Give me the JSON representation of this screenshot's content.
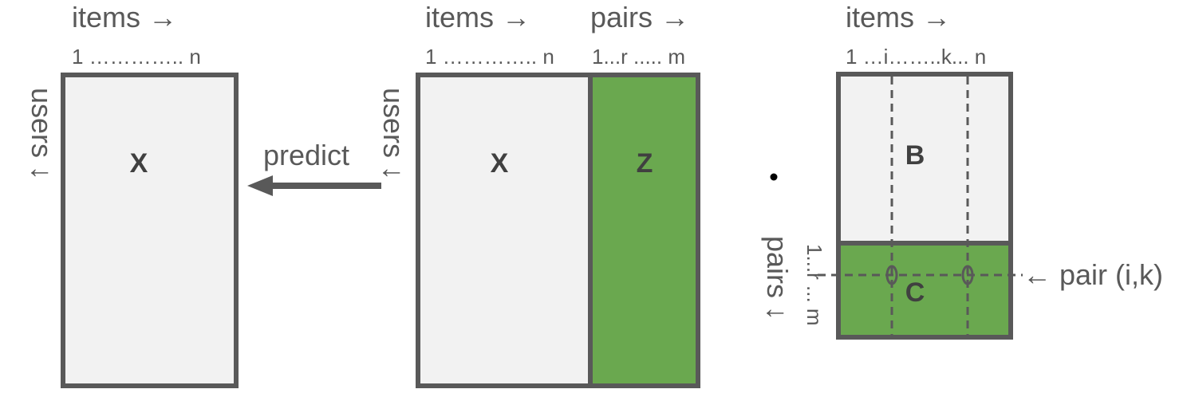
{
  "colors": {
    "matrix_fill": "#f2f2f2",
    "accent_green": "#6aa84f",
    "stroke": "#595959",
    "text": "#595959"
  },
  "left_matrix": {
    "col_header": "items →",
    "col_index": "1 ………….. n",
    "row_header": "users ↓",
    "label": "X"
  },
  "arrow": {
    "label": "predict"
  },
  "middle_matrix": {
    "col_header_items": "items →",
    "col_header_pairs": "pairs →",
    "col_index_items": "1 ………….. n",
    "col_index_pairs": "1...r ..... m",
    "row_header": "users ↓",
    "label_x": "X",
    "label_z": "Z"
  },
  "operator": {
    "symbol": "•"
  },
  "right_matrix": {
    "col_header": "items →",
    "col_index": "1 …i……..k... n",
    "row_header_pairs": "pairs ↓",
    "row_index_pairs": "1...r ... m",
    "label_b": "B",
    "label_c": "C",
    "pair_annotation": "← pair (i,k)"
  }
}
